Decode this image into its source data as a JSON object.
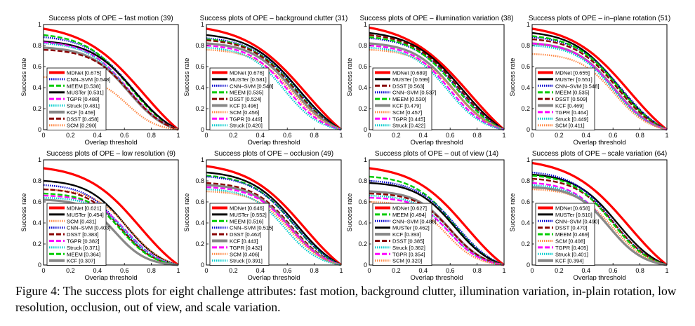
{
  "caption": {
    "label": "Figure 4:",
    "text": " The success plots for eight challenge attributes: fast motion, background clutter, illumination variation, in-plain rotation, low resolution, occlusion, out of view, and scale variation."
  },
  "tracker_styles": {
    "MDNet": {
      "color": "#ff0000",
      "dash": "solid",
      "width": 4
    },
    "CNN-SVM": {
      "color": "#0000cc",
      "dash": "dotted",
      "width": 3
    },
    "MUSTer": {
      "color": "#000000",
      "dash": "solid",
      "width": 3
    },
    "MEEM": {
      "color": "#00cc00",
      "dash": "dashed",
      "width": 3
    },
    "TGPR": {
      "color": "#ff00ff",
      "dash": "dashed",
      "width": 3
    },
    "Struck": {
      "color": "#00cccc",
      "dash": "dotted",
      "width": 3
    },
    "KCF": {
      "color": "#888888",
      "dash": "solid",
      "width": 4
    },
    "DSST": {
      "color": "#880000",
      "dash": "dashed",
      "width": 3
    },
    "SCM": {
      "color": "#ff8844",
      "dash": "dotted",
      "width": 3
    }
  },
  "chart_data": [
    {
      "type": "line",
      "title": "Success plots of OPE – fast motion (39)",
      "xlabel": "Overlap threshold",
      "ylabel": "Success rate",
      "xlim": [
        0,
        1
      ],
      "ylim": [
        0,
        1
      ],
      "xticks": [
        "0",
        "0.2",
        "0.4",
        "0.6",
        "0.8",
        "1"
      ],
      "yticks": [
        "0",
        "0.2",
        "0.4",
        "0.6",
        "0.8",
        "1"
      ],
      "legend_position": "lower-left",
      "series": [
        {
          "name": "MDNet [0.675]",
          "tracker": "MDNet",
          "y0": 0.96
        },
        {
          "name": "CNN–SVM [0.548]",
          "tracker": "CNN-SVM",
          "y0": 0.88
        },
        {
          "name": "MEEM [0.538]",
          "tracker": "MEEM",
          "y0": 0.9
        },
        {
          "name": "MUSTer [0.531]",
          "tracker": "MUSTer",
          "y0": 0.84
        },
        {
          "name": "TGPR [0.488]",
          "tracker": "TGPR",
          "y0": 0.83
        },
        {
          "name": "Struck [0.481]",
          "tracker": "Struck",
          "y0": 0.82
        },
        {
          "name": "KCF [0.459]",
          "tracker": "KCF",
          "y0": 0.78
        },
        {
          "name": "DSST [0.458]",
          "tracker": "DSST",
          "y0": 0.76
        },
        {
          "name": "SCM [0.290]",
          "tracker": "SCM",
          "y0": 0.5
        }
      ]
    },
    {
      "type": "line",
      "title": "Success plots of OPE – background clutter (31)",
      "xlabel": "Overlap threshold",
      "ylabel": "Success rate",
      "xlim": [
        0,
        1
      ],
      "ylim": [
        0,
        1
      ],
      "xticks": [
        "0",
        "0.2",
        "0.4",
        "0.6",
        "0.8",
        "1"
      ],
      "yticks": [
        "0",
        "0.2",
        "0.4",
        "0.6",
        "0.8",
        "1"
      ],
      "legend_position": "lower-left",
      "series": [
        {
          "name": "MDNet [0.676]",
          "tracker": "MDNet",
          "y0": 0.96
        },
        {
          "name": "MUSTer [0.581]",
          "tracker": "MUSTer",
          "y0": 0.9
        },
        {
          "name": "CNN–SVM [0.548]",
          "tracker": "CNN-SVM",
          "y0": 0.87
        },
        {
          "name": "MEEM [0.535]",
          "tracker": "MEEM",
          "y0": 0.86
        },
        {
          "name": "DSST [0.524]",
          "tracker": "DSST",
          "y0": 0.85
        },
        {
          "name": "KCF [0.496]",
          "tracker": "KCF",
          "y0": 0.82
        },
        {
          "name": "SCM [0.456]",
          "tracker": "SCM",
          "y0": 0.76
        },
        {
          "name": "TGPR [0.449]",
          "tracker": "TGPR",
          "y0": 0.8
        },
        {
          "name": "Struck [0.420]",
          "tracker": "Struck",
          "y0": 0.78
        }
      ]
    },
    {
      "type": "line",
      "title": "Success plots of OPE – illumination variation (38)",
      "xlabel": "Overlap threshold",
      "ylabel": "Success rate",
      "xlim": [
        0,
        1
      ],
      "ylim": [
        0,
        1
      ],
      "xticks": [
        "0",
        "0.2",
        "0.4",
        "0.6",
        "0.8",
        "1"
      ],
      "yticks": [
        "0",
        "0.2",
        "0.4",
        "0.6",
        "0.8",
        "1"
      ],
      "legend_position": "lower-left",
      "series": [
        {
          "name": "MDNet [0.689]",
          "tracker": "MDNet",
          "y0": 0.97
        },
        {
          "name": "MUSTer [0.599]",
          "tracker": "MUSTer",
          "y0": 0.92
        },
        {
          "name": "DSST [0.563]",
          "tracker": "DSST",
          "y0": 0.9
        },
        {
          "name": "CNN–SVM [0.537]",
          "tracker": "CNN-SVM",
          "y0": 0.87
        },
        {
          "name": "MEEM [0.530]",
          "tracker": "MEEM",
          "y0": 0.88
        },
        {
          "name": "KCF [0.479]",
          "tracker": "KCF",
          "y0": 0.82
        },
        {
          "name": "SCM [0.457]",
          "tracker": "SCM",
          "y0": 0.76
        },
        {
          "name": "TGPR [0.445]",
          "tracker": "TGPR",
          "y0": 0.8
        },
        {
          "name": "Struck [0.422]",
          "tracker": "Struck",
          "y0": 0.78
        }
      ]
    },
    {
      "type": "line",
      "title": "Success plots of OPE – in–plane rotation (51)",
      "xlabel": "Overlap threshold",
      "ylabel": "Success rate",
      "xlim": [
        0,
        1
      ],
      "ylim": [
        0,
        1
      ],
      "xticks": [
        "0",
        "0.2",
        "0.4",
        "0.6",
        "0.8",
        "1"
      ],
      "yticks": [
        "0",
        "0.2",
        "0.4",
        "0.6",
        "0.8",
        "1"
      ],
      "legend_position": "lower-left",
      "series": [
        {
          "name": "MDNet [0.655]",
          "tracker": "MDNet",
          "y0": 0.96
        },
        {
          "name": "MUSTer [0.551]",
          "tracker": "MUSTer",
          "y0": 0.92
        },
        {
          "name": "CNN–SVM [0.548]",
          "tracker": "CNN-SVM",
          "y0": 0.88
        },
        {
          "name": "MEEM [0.535]",
          "tracker": "MEEM",
          "y0": 0.89
        },
        {
          "name": "DSST [0.509]",
          "tracker": "DSST",
          "y0": 0.86
        },
        {
          "name": "KCF [0.469]",
          "tracker": "KCF",
          "y0": 0.82
        },
        {
          "name": "TGPR [0.464]",
          "tracker": "TGPR",
          "y0": 0.82
        },
        {
          "name": "Struck [0.449]",
          "tracker": "Struck",
          "y0": 0.8
        },
        {
          "name": "SCM [0.411]",
          "tracker": "SCM",
          "y0": 0.72
        }
      ]
    },
    {
      "type": "line",
      "title": "Success plots of OPE – low resolution (9)",
      "xlabel": "Overlap threshold",
      "ylabel": "Success rate",
      "xlim": [
        0,
        1
      ],
      "ylim": [
        0,
        1
      ],
      "xticks": [
        "0",
        "0.2",
        "0.4",
        "0.6",
        "0.8",
        "1"
      ],
      "yticks": [
        "0",
        "0.2",
        "0.4",
        "0.6",
        "0.8",
        "1"
      ],
      "legend_position": "lower-left",
      "series": [
        {
          "name": "MDNet [0.621]",
          "tracker": "MDNet",
          "y0": 0.92
        },
        {
          "name": "MUSTer [0.454]",
          "tracker": "MUSTer",
          "y0": 0.8
        },
        {
          "name": "SCM [0.431]",
          "tracker": "SCM",
          "y0": 0.72
        },
        {
          "name": "CNN–SVM [0.403]",
          "tracker": "CNN-SVM",
          "y0": 0.76
        },
        {
          "name": "DSST [0.383]",
          "tracker": "DSST",
          "y0": 0.72
        },
        {
          "name": "TGPR [0.382]",
          "tracker": "TGPR",
          "y0": 0.66
        },
        {
          "name": "Struck [0.371]",
          "tracker": "Struck",
          "y0": 0.64
        },
        {
          "name": "MEEM [0.364]",
          "tracker": "MEEM",
          "y0": 0.68
        },
        {
          "name": "KCF [0.307]",
          "tracker": "KCF",
          "y0": 0.62
        }
      ]
    },
    {
      "type": "line",
      "title": "Success plots of OPE – occlusion (49)",
      "xlabel": "Overlap threshold",
      "ylabel": "Success rate",
      "xlim": [
        0,
        1
      ],
      "ylim": [
        0,
        1
      ],
      "xticks": [
        "0",
        "0.2",
        "0.4",
        "0.6",
        "0.8",
        "1"
      ],
      "yticks": [
        "0",
        "0.2",
        "0.4",
        "0.6",
        "0.8",
        "1"
      ],
      "legend_position": "lower-left",
      "series": [
        {
          "name": "MDNet [0.646]",
          "tracker": "MDNet",
          "y0": 0.94
        },
        {
          "name": "MUSTer [0.552]",
          "tracker": "MUSTer",
          "y0": 0.88
        },
        {
          "name": "MEEM [0.516]",
          "tracker": "MEEM",
          "y0": 0.85
        },
        {
          "name": "CNN–SVM [0.515]",
          "tracker": "CNN-SVM",
          "y0": 0.84
        },
        {
          "name": "DSST [0.462]",
          "tracker": "DSST",
          "y0": 0.78
        },
        {
          "name": "KCF [0.443]",
          "tracker": "KCF",
          "y0": 0.76
        },
        {
          "name": "TGPR [0.432]",
          "tracker": "TGPR",
          "y0": 0.74
        },
        {
          "name": "SCM [0.406]",
          "tracker": "SCM",
          "y0": 0.7
        },
        {
          "name": "Struck [0.391]",
          "tracker": "Struck",
          "y0": 0.72
        }
      ]
    },
    {
      "type": "line",
      "title": "Success plots of OPE – out of view (14)",
      "xlabel": "Overlap threshold",
      "ylabel": "Success rate",
      "xlim": [
        0,
        1
      ],
      "ylim": [
        0,
        1
      ],
      "xticks": [
        "0",
        "0.2",
        "0.4",
        "0.6",
        "0.8",
        "1"
      ],
      "yticks": [
        "0",
        "0.2",
        "0.4",
        "0.6",
        "0.8",
        "1"
      ],
      "legend_position": "lower-left",
      "series": [
        {
          "name": "MDNet [0.627]",
          "tracker": "MDNet",
          "y0": 0.92
        },
        {
          "name": "MEEM [0.494]",
          "tracker": "MEEM",
          "y0": 0.84
        },
        {
          "name": "CNN–SVM [0.488]",
          "tracker": "CNN-SVM",
          "y0": 0.8
        },
        {
          "name": "MUSTer [0.462]",
          "tracker": "MUSTer",
          "y0": 0.78
        },
        {
          "name": "KCF [0.393]",
          "tracker": "KCF",
          "y0": 0.7
        },
        {
          "name": "DSST [0.385]",
          "tracker": "DSST",
          "y0": 0.68
        },
        {
          "name": "Struck [0.362]",
          "tracker": "Struck",
          "y0": 0.66
        },
        {
          "name": "TGPR [0.354]",
          "tracker": "TGPR",
          "y0": 0.64
        },
        {
          "name": "SCM [0.320]",
          "tracker": "SCM",
          "y0": 0.6
        }
      ]
    },
    {
      "type": "line",
      "title": "Success plots of OPE – scale variation (64)",
      "xlabel": "Overlap threshold",
      "ylabel": "Success rate",
      "xlim": [
        0,
        1
      ],
      "ylim": [
        0,
        1
      ],
      "xticks": [
        "0",
        "0.2",
        "0.4",
        "0.6",
        "0.8",
        "1"
      ],
      "yticks": [
        "0",
        "0.2",
        "0.4",
        "0.6",
        "0.8",
        "1"
      ],
      "legend_position": "lower-left",
      "series": [
        {
          "name": "MDNet [0.658]",
          "tracker": "MDNet",
          "y0": 0.97
        },
        {
          "name": "MUSTer [0.510]",
          "tracker": "MUSTer",
          "y0": 0.86
        },
        {
          "name": "CNN–SVM [0.490]",
          "tracker": "CNN-SVM",
          "y0": 0.88
        },
        {
          "name": "DSST [0.470]",
          "tracker": "DSST",
          "y0": 0.82
        },
        {
          "name": "MEEM [0.469]",
          "tracker": "MEEM",
          "y0": 0.85
        },
        {
          "name": "SCM [0.408]",
          "tracker": "SCM",
          "y0": 0.72
        },
        {
          "name": "TGPR [0.405]",
          "tracker": "TGPR",
          "y0": 0.78
        },
        {
          "name": "Struck [0.401]",
          "tracker": "Struck",
          "y0": 0.76
        },
        {
          "name": "KCF [0.394]",
          "tracker": "KCF",
          "y0": 0.74
        }
      ]
    }
  ]
}
